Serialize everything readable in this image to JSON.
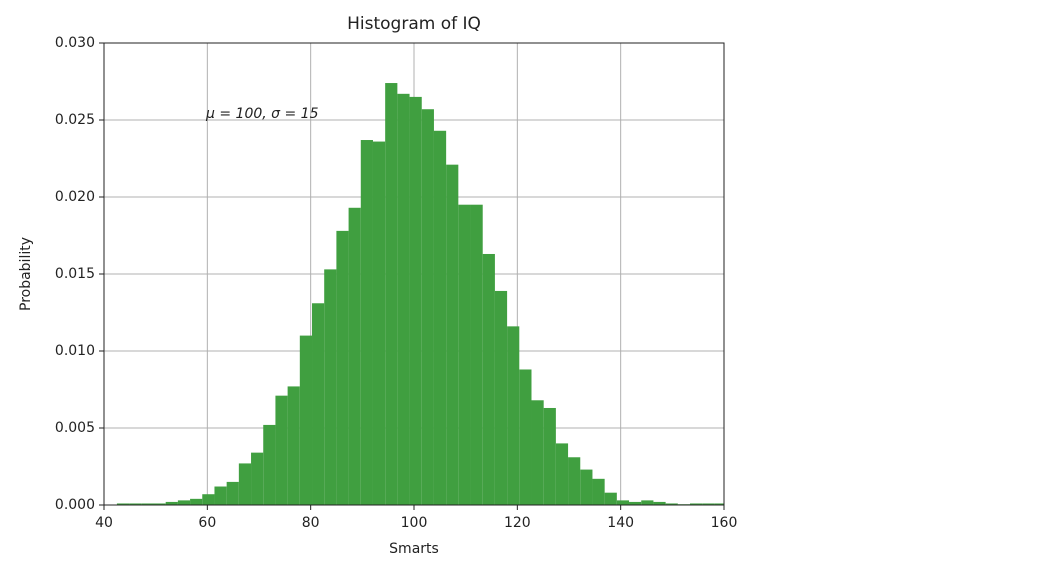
{
  "chart_data": {
    "type": "histogram",
    "title": "Histogram of IQ",
    "x_label": "Smarts",
    "y_label": "Probability",
    "annotation": "μ = 100,  σ = 15",
    "bins": [
      42.5,
      44.86,
      47.22,
      49.58,
      51.94,
      54.3,
      56.66,
      59.02,
      61.38,
      63.74,
      66.1,
      68.46,
      70.82,
      73.18,
      75.54,
      77.9,
      80.26,
      82.62,
      84.98,
      87.34,
      89.7,
      92.06,
      94.42,
      96.78,
      99.14,
      101.5,
      103.86,
      106.22,
      108.58,
      110.94,
      113.3,
      115.66,
      118.02,
      120.38,
      122.74,
      125.1,
      127.46,
      129.82,
      132.18,
      134.54,
      136.9,
      139.26,
      141.62,
      143.98,
      146.34,
      148.7,
      151.06,
      153.42,
      155.78,
      158.14,
      160.5
    ],
    "values": [
      0.0001,
      0.0001,
      0.0001,
      0.0001,
      0.0002,
      0.0003,
      0.0004,
      0.0007,
      0.0012,
      0.0015,
      0.0027,
      0.0034,
      0.0052,
      0.0071,
      0.0077,
      0.011,
      0.0131,
      0.0153,
      0.0178,
      0.0193,
      0.0237,
      0.0236,
      0.0274,
      0.0267,
      0.0265,
      0.0257,
      0.0243,
      0.0221,
      0.0195,
      0.0195,
      0.0163,
      0.0139,
      0.0116,
      0.0088,
      0.0068,
      0.0063,
      0.004,
      0.0031,
      0.0023,
      0.0017,
      0.0008,
      0.0003,
      0.0002,
      0.0003,
      0.0002,
      0.0001,
      5e-05,
      0.0001,
      0.0001,
      0.0001
    ],
    "color": "#409f40",
    "xlim": [
      40,
      160
    ],
    "xticks": [
      40,
      60,
      80,
      100,
      120,
      140,
      160
    ],
    "ylim": [
      0,
      0.03
    ],
    "yticks": [
      {
        "value": 0,
        "label": "0.000"
      },
      {
        "value": 0.005,
        "label": "0.005"
      },
      {
        "value": 0.01,
        "label": "0.010"
      },
      {
        "value": 0.015,
        "label": "0.015"
      },
      {
        "value": 0.02,
        "label": "0.020"
      },
      {
        "value": 0.025,
        "label": "0.025"
      },
      {
        "value": 0.03,
        "label": "0.030"
      }
    ],
    "grid": true
  }
}
